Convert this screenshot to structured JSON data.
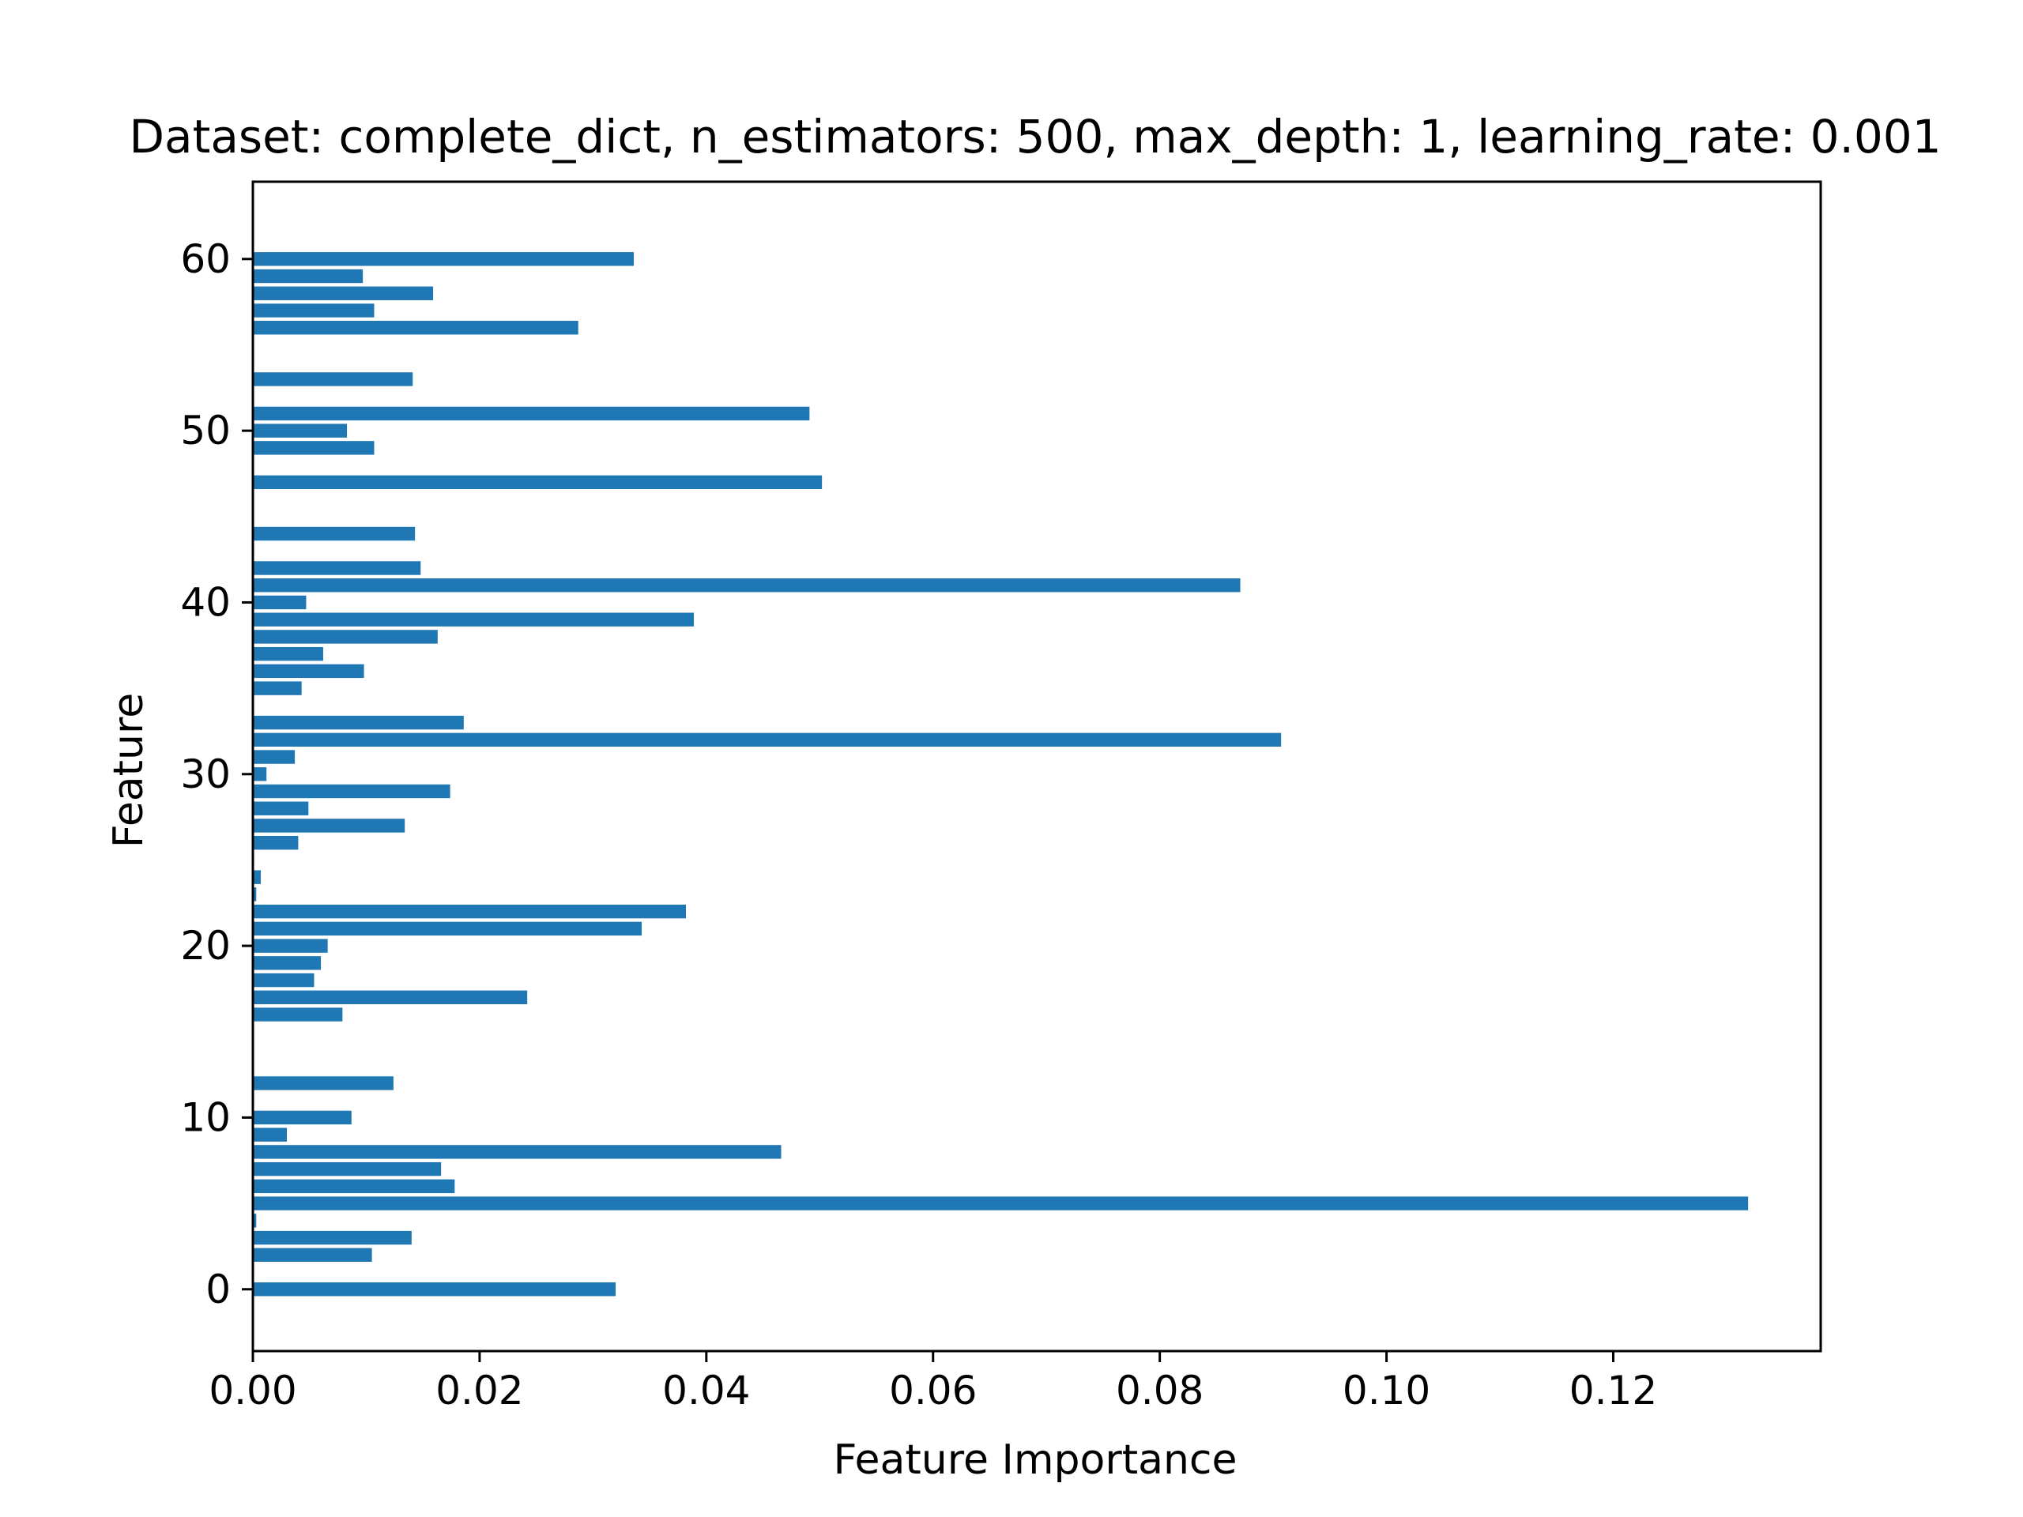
{
  "chart_data": {
    "type": "bar",
    "orientation": "horizontal",
    "title": "Dataset: complete_dict, n_estimators: 500, max_depth: 1, learning_rate: 0.001",
    "xlabel": "Feature Importance",
    "ylabel": "Feature",
    "bar_color": "#1f77b4",
    "xlim": [
      0,
      0.1383
    ],
    "ylim": [
      -3.6,
      64.5
    ],
    "xticks": [
      {
        "value": 0.0,
        "label": "0.00"
      },
      {
        "value": 0.02,
        "label": "0.02"
      },
      {
        "value": 0.04,
        "label": "0.04"
      },
      {
        "value": 0.06,
        "label": "0.06"
      },
      {
        "value": 0.08,
        "label": "0.08"
      },
      {
        "value": 0.1,
        "label": "0.10"
      },
      {
        "value": 0.12,
        "label": "0.12"
      }
    ],
    "yticks": [
      {
        "value": 0,
        "label": "0"
      },
      {
        "value": 10,
        "label": "10"
      },
      {
        "value": 20,
        "label": "20"
      },
      {
        "value": 30,
        "label": "30"
      },
      {
        "value": 40,
        "label": "40"
      },
      {
        "value": 50,
        "label": "50"
      },
      {
        "value": 60,
        "label": "60"
      }
    ],
    "grid": false,
    "features": [
      0,
      1,
      2,
      3,
      4,
      5,
      6,
      7,
      8,
      9,
      10,
      11,
      12,
      13,
      14,
      15,
      16,
      17,
      18,
      19,
      20,
      21,
      22,
      23,
      24,
      25,
      26,
      27,
      28,
      29,
      30,
      31,
      32,
      33,
      34,
      35,
      36,
      37,
      38,
      39,
      40,
      41,
      42,
      43,
      44,
      45,
      46,
      47,
      48,
      49,
      50,
      51,
      52,
      53,
      54,
      55,
      56,
      57,
      58,
      59,
      60
    ],
    "values": [
      0.032,
      0,
      0.0105,
      0.014,
      0.0003,
      0.1319,
      0.0178,
      0.0166,
      0.0466,
      0.003,
      0.0087,
      0,
      0.0124,
      0,
      0,
      0,
      0.0079,
      0.0242,
      0.0054,
      0.006,
      0.0066,
      0.0343,
      0.0382,
      0.0003,
      0.0007,
      0,
      0.004,
      0.0134,
      0.0049,
      0.0174,
      0.0012,
      0.0037,
      0.0907,
      0.0186,
      0,
      0.0043,
      0.0098,
      0.0062,
      0.0163,
      0.0389,
      0.0047,
      0.0871,
      0.0148,
      0,
      0.0143,
      0,
      0,
      0.0502,
      0,
      0.0107,
      0.0083,
      0.0491,
      0,
      0.0141,
      0,
      0,
      0.0287,
      0.0107,
      0.0159,
      0.0097,
      0.0336
    ]
  }
}
